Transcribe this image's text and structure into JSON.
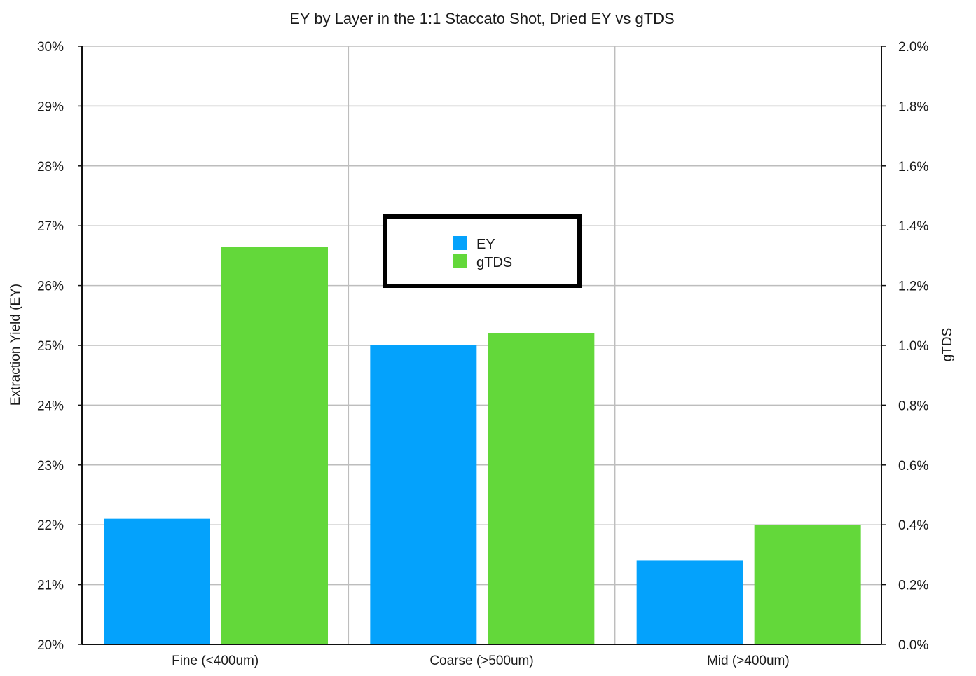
{
  "chart_data": {
    "type": "bar",
    "title": "EY by Layer in the 1:1 Staccato Shot, Dried EY vs gTDS",
    "categories": [
      "Fine (<400um)",
      "Coarse (>500um)",
      "Mid (>400um)"
    ],
    "series": [
      {
        "name": "EY",
        "axis": "left",
        "color": "#04a2fc",
        "values": [
          22.1,
          25.0,
          21.4
        ]
      },
      {
        "name": "gTDS",
        "axis": "right",
        "color": "#63d83a",
        "values": [
          1.33,
          1.04,
          0.4
        ]
      }
    ],
    "y_left": {
      "label": "Extraction Yield (EY)",
      "ylim": [
        20,
        30
      ],
      "ticks": [
        20,
        21,
        22,
        23,
        24,
        25,
        26,
        27,
        28,
        29,
        30
      ],
      "tick_labels": [
        "20%",
        "21%",
        "22%",
        "23%",
        "24%",
        "25%",
        "26%",
        "27%",
        "28%",
        "29%",
        "30%"
      ]
    },
    "y_right": {
      "label": "gTDS",
      "ylim": [
        0,
        2
      ],
      "ticks": [
        0,
        0.2,
        0.4,
        0.6,
        0.8,
        1.0,
        1.2,
        1.4,
        1.6,
        1.8,
        2.0
      ],
      "tick_labels": [
        "0.0%",
        "0.2%",
        "0.4%",
        "0.6%",
        "0.8%",
        "1.0%",
        "1.2%",
        "1.4%",
        "1.6%",
        "1.8%",
        "2.0%"
      ]
    },
    "grid": true,
    "legend": {
      "placement": "center",
      "items": [
        "EY",
        "gTDS"
      ]
    }
  }
}
